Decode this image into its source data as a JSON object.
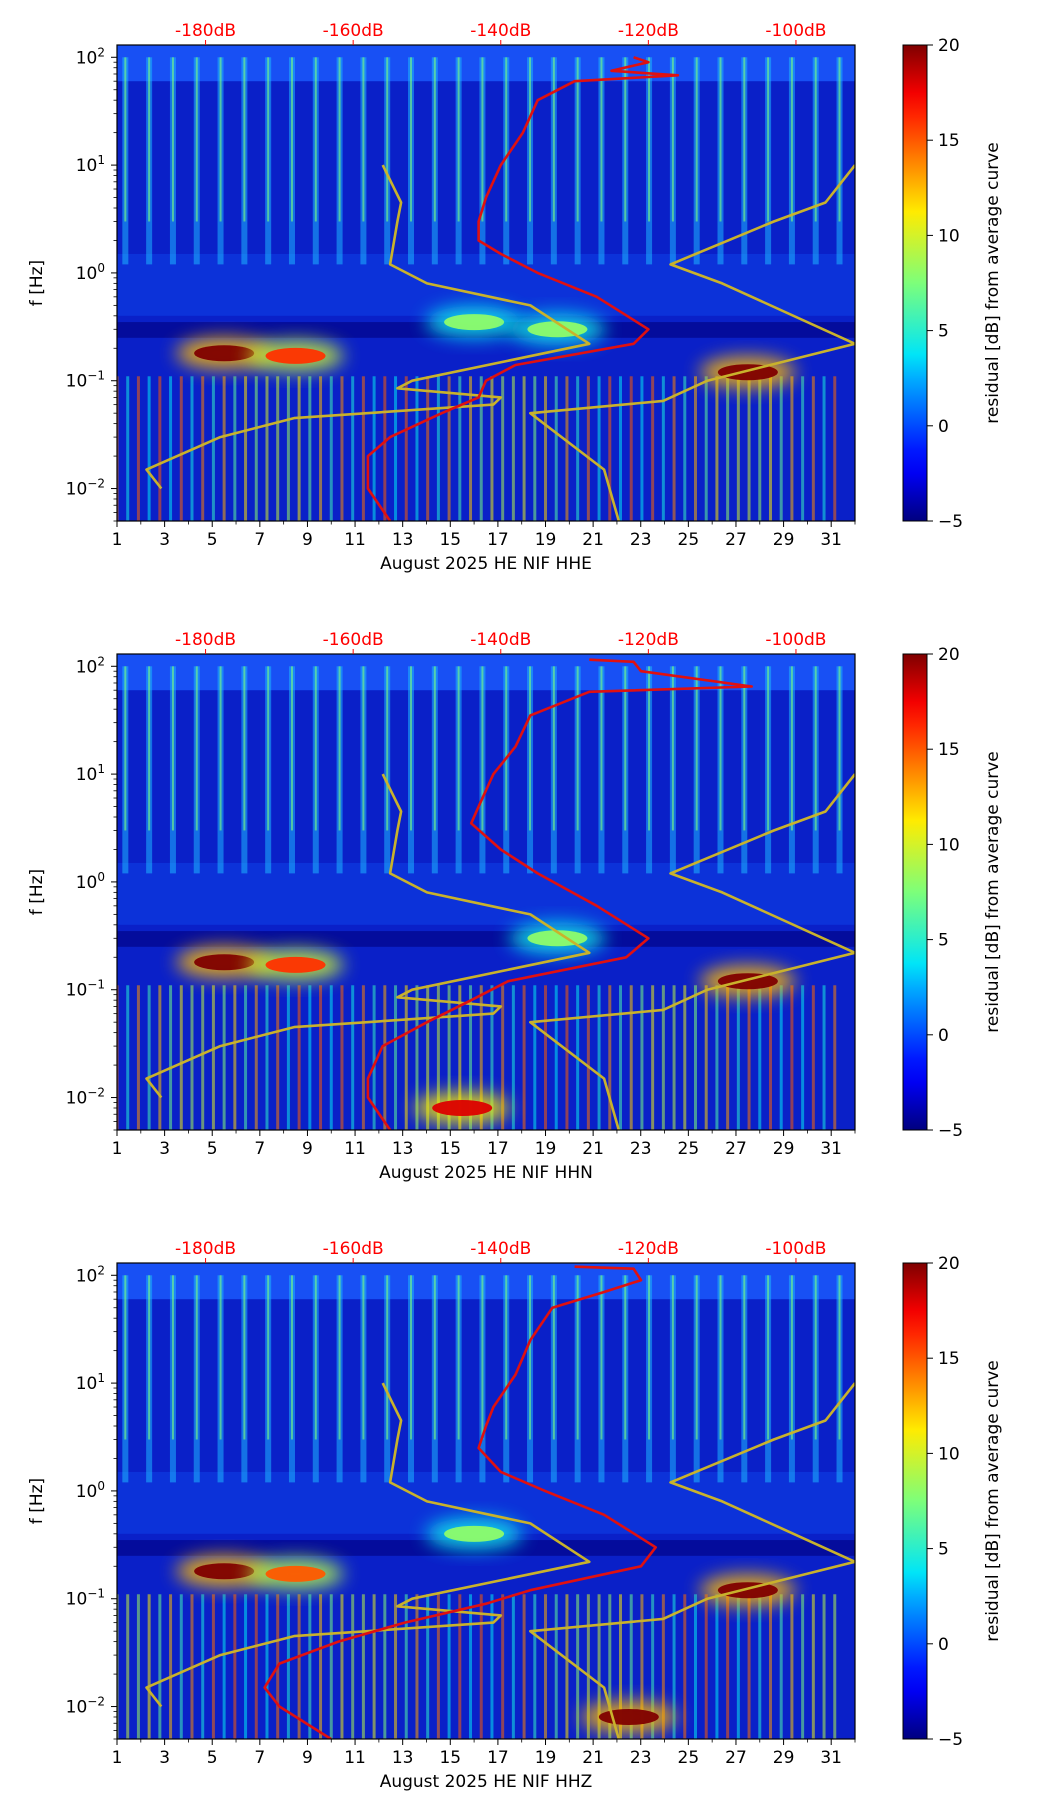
{
  "colors": {
    "top_axis_text": "#ff0000",
    "noise_curve": "#e01010",
    "model_curve": "#c9b22c",
    "axis": "#000000"
  },
  "colorbar": {
    "label": "residual [dB] from average curve",
    "ticks": [
      "20",
      "15",
      "10",
      "5",
      "0",
      "−5"
    ],
    "range": [
      -5,
      20
    ]
  },
  "y_axis": {
    "label": "f [Hz]",
    "ticks": [
      {
        "base": "10",
        "exp": "2",
        "value": 100
      },
      {
        "base": "10",
        "exp": "1",
        "value": 10
      },
      {
        "base": "10",
        "exp": "0",
        "value": 1
      },
      {
        "base": "10",
        "exp": "−1",
        "value": 0.1
      },
      {
        "base": "10",
        "exp": "−2",
        "value": 0.01
      }
    ],
    "range": [
      0.005,
      130
    ]
  },
  "x_axis": {
    "ticks": [
      "1",
      "3",
      "5",
      "7",
      "9",
      "11",
      "13",
      "15",
      "17",
      "19",
      "21",
      "23",
      "25",
      "27",
      "29",
      "31"
    ],
    "range": [
      1,
      32
    ]
  },
  "top_axis": {
    "ticks": [
      "-180dB",
      "-160dB",
      "-140dB",
      "-120dB",
      "-100dB"
    ],
    "range_db": [
      -192,
      -92
    ]
  },
  "chart_data": [
    {
      "type": "heatmap",
      "title": "",
      "xlabel": "August 2025 HE NIF  HHE",
      "ylabel": "f [Hz]",
      "zlabel": "residual [dB] from average curve",
      "xlim": [
        1,
        32
      ],
      "ylim": [
        0.005,
        130
      ],
      "zlim": [
        -5,
        20
      ],
      "hot_spots": [
        {
          "day": 5.5,
          "f": 0.18,
          "residual_db": 20
        },
        {
          "day": 8.5,
          "f": 0.17,
          "residual_db": 16
        },
        {
          "day": 27.5,
          "f": 0.12,
          "residual_db": 20
        },
        {
          "day": 16,
          "f": 0.35,
          "residual_db": 8
        },
        {
          "day": 19.5,
          "f": 0.3,
          "residual_db": 8
        }
      ],
      "series": [
        {
          "name": "noise model (dB)",
          "points": [
            [
              -156,
              10
            ],
            [
              -153.5,
              4.5
            ],
            [
              -154,
              3
            ],
            [
              -155,
              1.2
            ],
            [
              -150,
              0.8
            ],
            [
              -136,
              0.5
            ],
            [
              -128,
              0.22
            ],
            [
              -152,
              0.1
            ],
            [
              -154,
              0.085
            ],
            [
              -140,
              0.07
            ],
            [
              -141,
              0.06
            ],
            [
              -168,
              0.045
            ],
            [
              -178,
              0.03
            ],
            [
              -188,
              0.015
            ],
            [
              -186,
              0.01
            ]
          ]
        },
        {
          "name": "noise model (dB)",
          "points": [
            [
              -92,
              10
            ],
            [
              -96,
              4.5
            ],
            [
              -103,
              3
            ],
            [
              -117,
              1.2
            ],
            [
              -110,
              0.8
            ],
            [
              -92,
              0.22
            ],
            [
              -112,
              0.1
            ],
            [
              -118,
              0.065
            ],
            [
              -136,
              0.05
            ],
            [
              -126,
              0.015
            ],
            [
              -124,
              0.005
            ]
          ]
        },
        {
          "name": "average noise (dB)",
          "points": [
            [
              -122,
              100
            ],
            [
              -120,
              90
            ],
            [
              -125,
              75
            ],
            [
              -116,
              68
            ],
            [
              -130,
              60
            ],
            [
              -135,
              40
            ],
            [
              -137,
              20
            ],
            [
              -140,
              10
            ],
            [
              -142,
              5
            ],
            [
              -143,
              3
            ],
            [
              -143,
              2
            ],
            [
              -140,
              1.5
            ],
            [
              -135,
              1
            ],
            [
              -127,
              0.6
            ],
            [
              -120,
              0.3
            ],
            [
              -122,
              0.22
            ],
            [
              -138,
              0.14
            ],
            [
              -142,
              0.1
            ],
            [
              -143,
              0.07
            ],
            [
              -148,
              0.05
            ],
            [
              -155,
              0.03
            ],
            [
              -158,
              0.02
            ],
            [
              -158,
              0.01
            ],
            [
              -155,
              0.005
            ]
          ]
        }
      ]
    },
    {
      "type": "heatmap",
      "title": "",
      "xlabel": "August 2025 HE NIF  HHN",
      "ylabel": "f [Hz]",
      "zlabel": "residual [dB] from average curve",
      "xlim": [
        1,
        32
      ],
      "ylim": [
        0.005,
        130
      ],
      "zlim": [
        -5,
        20
      ],
      "hot_spots": [
        {
          "day": 5.5,
          "f": 0.18,
          "residual_db": 20
        },
        {
          "day": 8.5,
          "f": 0.17,
          "residual_db": 16
        },
        {
          "day": 27.5,
          "f": 0.12,
          "residual_db": 20
        },
        {
          "day": 15.5,
          "f": 0.008,
          "residual_db": 18
        },
        {
          "day": 19.5,
          "f": 0.3,
          "residual_db": 8
        }
      ],
      "series": [
        {
          "name": "noise model (dB)",
          "points": [
            [
              -156,
              10
            ],
            [
              -153.5,
              4.5
            ],
            [
              -154,
              3
            ],
            [
              -155,
              1.2
            ],
            [
              -150,
              0.8
            ],
            [
              -136,
              0.5
            ],
            [
              -128,
              0.22
            ],
            [
              -152,
              0.1
            ],
            [
              -154,
              0.085
            ],
            [
              -140,
              0.07
            ],
            [
              -141,
              0.06
            ],
            [
              -168,
              0.045
            ],
            [
              -178,
              0.03
            ],
            [
              -188,
              0.015
            ],
            [
              -186,
              0.01
            ]
          ]
        },
        {
          "name": "noise model (dB)",
          "points": [
            [
              -92,
              10
            ],
            [
              -96,
              4.5
            ],
            [
              -103,
              3
            ],
            [
              -117,
              1.2
            ],
            [
              -110,
              0.8
            ],
            [
              -92,
              0.22
            ],
            [
              -112,
              0.1
            ],
            [
              -118,
              0.065
            ],
            [
              -136,
              0.05
            ],
            [
              -126,
              0.015
            ],
            [
              -124,
              0.005
            ]
          ]
        },
        {
          "name": "average noise (dB)",
          "points": [
            [
              -128,
              115
            ],
            [
              -122,
              110
            ],
            [
              -121,
              90
            ],
            [
              -106,
              65
            ],
            [
              -128,
              58
            ],
            [
              -136,
              35
            ],
            [
              -138,
              18
            ],
            [
              -141,
              10
            ],
            [
              -143,
              5
            ],
            [
              -144,
              3.5
            ],
            [
              -140,
              2
            ],
            [
              -135,
              1.2
            ],
            [
              -127,
              0.6
            ],
            [
              -120,
              0.3
            ],
            [
              -123,
              0.2
            ],
            [
              -139,
              0.12
            ],
            [
              -144,
              0.08
            ],
            [
              -150,
              0.05
            ],
            [
              -156,
              0.03
            ],
            [
              -158,
              0.015
            ],
            [
              -158,
              0.01
            ],
            [
              -155,
              0.005
            ]
          ]
        }
      ]
    },
    {
      "type": "heatmap",
      "title": "",
      "xlabel": "August 2025 HE NIF  HHZ",
      "ylabel": "f [Hz]",
      "zlabel": "residual [dB] from average curve",
      "xlim": [
        1,
        32
      ],
      "ylim": [
        0.005,
        130
      ],
      "zlim": [
        -5,
        20
      ],
      "hot_spots": [
        {
          "day": 5.5,
          "f": 0.18,
          "residual_db": 20
        },
        {
          "day": 8.5,
          "f": 0.17,
          "residual_db": 15
        },
        {
          "day": 27.5,
          "f": 0.12,
          "residual_db": 20
        },
        {
          "day": 16,
          "f": 0.4,
          "residual_db": 8
        },
        {
          "day": 22.5,
          "f": 0.008,
          "residual_db": 20
        }
      ],
      "series": [
        {
          "name": "noise model (dB)",
          "points": [
            [
              -156,
              10
            ],
            [
              -153.5,
              4.5
            ],
            [
              -154,
              3
            ],
            [
              -155,
              1.2
            ],
            [
              -150,
              0.8
            ],
            [
              -136,
              0.5
            ],
            [
              -128,
              0.22
            ],
            [
              -152,
              0.1
            ],
            [
              -154,
              0.085
            ],
            [
              -140,
              0.07
            ],
            [
              -141,
              0.06
            ],
            [
              -168,
              0.045
            ],
            [
              -178,
              0.03
            ],
            [
              -188,
              0.015
            ],
            [
              -186,
              0.01
            ]
          ]
        },
        {
          "name": "noise model (dB)",
          "points": [
            [
              -92,
              10
            ],
            [
              -96,
              4.5
            ],
            [
              -103,
              3
            ],
            [
              -117,
              1.2
            ],
            [
              -110,
              0.8
            ],
            [
              -92,
              0.22
            ],
            [
              -112,
              0.1
            ],
            [
              -118,
              0.065
            ],
            [
              -136,
              0.05
            ],
            [
              -126,
              0.015
            ],
            [
              -124,
              0.005
            ]
          ]
        },
        {
          "name": "average noise (dB)",
          "points": [
            [
              -130,
              120
            ],
            [
              -122,
              115
            ],
            [
              -121,
              90
            ],
            [
              -126,
              70
            ],
            [
              -133,
              50
            ],
            [
              -136,
              25
            ],
            [
              -138,
              12
            ],
            [
              -141,
              6
            ],
            [
              -142,
              4
            ],
            [
              -143,
              2.5
            ],
            [
              -140,
              1.5
            ],
            [
              -134,
              1
            ],
            [
              -126,
              0.6
            ],
            [
              -119,
              0.3
            ],
            [
              -121,
              0.2
            ],
            [
              -136,
              0.12
            ],
            [
              -142,
              0.09
            ],
            [
              -153,
              0.06
            ],
            [
              -162,
              0.04
            ],
            [
              -170,
              0.025
            ],
            [
              -172,
              0.015
            ],
            [
              -170,
              0.01
            ],
            [
              -163,
              0.005
            ]
          ]
        }
      ]
    }
  ]
}
